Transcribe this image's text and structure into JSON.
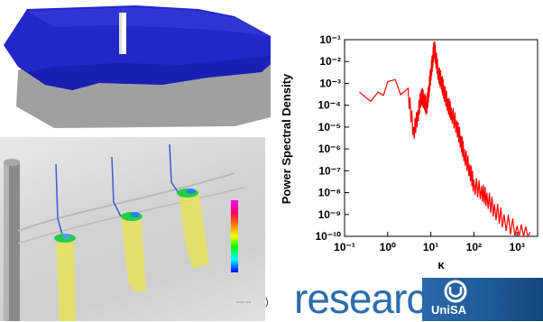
{
  "figure_3d": {
    "surface_color": "#2326c8",
    "shadow_color": "#8a8a8a"
  },
  "sim": {
    "colorbar_title": "",
    "colors": [
      "#ff00ff",
      "#ff0080",
      "#ff0000",
      "#ffff00",
      "#00ff00",
      "#00ffff",
      "#0000ff"
    ]
  },
  "chart_data": {
    "type": "line",
    "ylabel": "Power Spectral Density",
    "xlabel": "κ",
    "xscale": "log",
    "yscale": "log",
    "xlim": [
      0.1,
      3000
    ],
    "ylim": [
      1e-10,
      0.1
    ],
    "x_ticks": [
      "10⁻¹",
      "10⁰",
      "10¹",
      "10²",
      "10³"
    ],
    "y_ticks": [
      "10⁻¹",
      "10⁻²",
      "10⁻³",
      "10⁻⁴",
      "10⁻⁵",
      "10⁻⁶",
      "10⁻⁷",
      "10⁻⁸",
      "10⁻⁹",
      "10⁻¹⁰"
    ],
    "line_color": "#ff0000",
    "series": [
      {
        "x": [
          0.22,
          0.4,
          0.6,
          0.8,
          1.0,
          1.5,
          2.0,
          3.0,
          4.0,
          5.0,
          6.0,
          7.0,
          8.0,
          9.0,
          10,
          11,
          12,
          13,
          15,
          18,
          20,
          25,
          30,
          40,
          50,
          60,
          80,
          100,
          150,
          200,
          300,
          500,
          1000,
          2000
        ],
        "values": [
          0.0004,
          0.00015,
          0.0004,
          0.00028,
          0.0012,
          0.0015,
          0.0003,
          0.0006,
          1e-05,
          6e-05,
          0.0005,
          0.0003,
          0.00015,
          0.0008,
          0.005,
          0.02,
          0.08,
          0.03,
          0.005,
          0.002,
          0.0008,
          0.0002,
          8e-05,
          2e-05,
          4e-06,
          1e-06,
          2e-07,
          4e-08,
          2e-08,
          1e-08,
          3e-09,
          1e-09,
          3e-10,
          1.5e-10
        ]
      }
    ]
  },
  "banner": {
    "caption": "~~~ ~~",
    "paren": ")",
    "word": "research",
    "org": "UniSA"
  }
}
